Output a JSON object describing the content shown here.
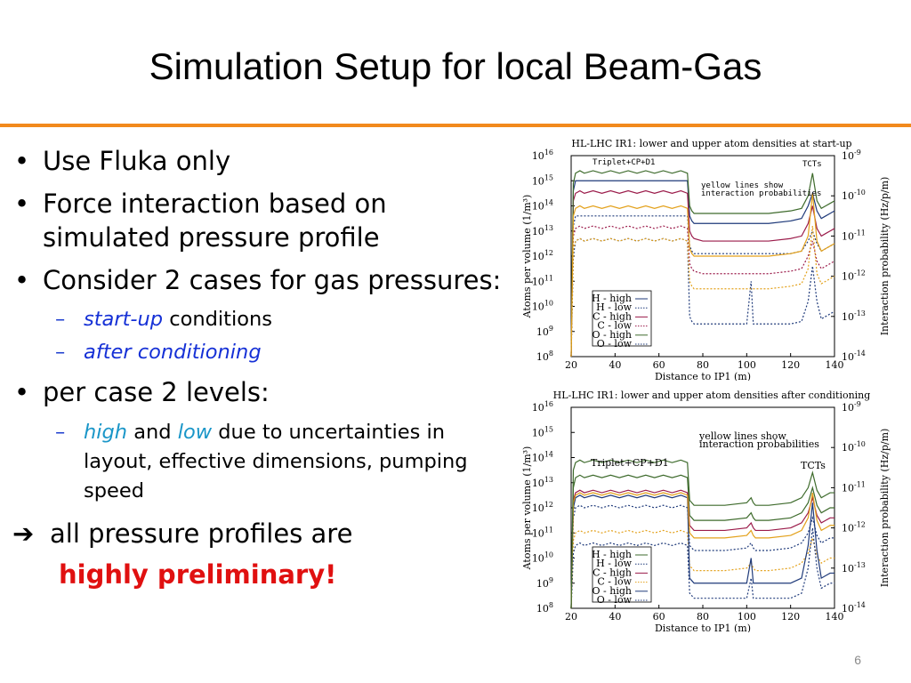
{
  "slide": {
    "title": "Simulation Setup for local Beam-Gas",
    "page_number": "6",
    "accent_color": "#f28a1d"
  },
  "bullets": {
    "b1": "Use Fluka only",
    "b2": "Force interaction based on simulated pressure profile",
    "b3": "Consider 2 cases for gas pressures:",
    "b3_sub1_em": "start-up",
    "b3_sub1_rest": " conditions",
    "b3_sub2_em": "after conditioning",
    "b4": "per case 2 levels:",
    "b4_sub1_em1": "high",
    "b4_sub1_and": " and ",
    "b4_sub1_em2": "low",
    "b4_sub1_rest": " due to uncertainties in layout, effective dimensions, pumping speed",
    "arrow_text": "all pressure profiles are",
    "prelim": "highly preliminary!"
  },
  "chart_data": [
    {
      "type": "line",
      "title": "HL-LHC IR1: lower and upper atom densities at start-up",
      "xlabel": "Distance to IP1 (m)",
      "ylabel": "Atoms per volume (1/m³)",
      "y2label": "Interaction probability (Hz/p/m)",
      "xlim": [
        20,
        140
      ],
      "ylim_log10": [
        8,
        16
      ],
      "y2lim_log10": [
        -14,
        -9
      ],
      "xticks": [
        "20",
        "40",
        "60",
        "80",
        "100",
        "120",
        "140"
      ],
      "yticks": [
        "10",
        "10",
        "10",
        "10",
        "10",
        "10",
        "10",
        "10",
        "10"
      ],
      "ytick_exp": [
        "8",
        "9",
        "10",
        "11",
        "12",
        "13",
        "14",
        "15",
        "16"
      ],
      "y2ticks_exp": [
        "-14",
        "-13",
        "-12",
        "-11",
        "-10",
        "-9"
      ],
      "annotations": [
        "Triplet+CP+D1",
        "TCTs",
        "yellow lines show",
        "interaction probabilities"
      ],
      "legend": [
        "H - high",
        "H - low",
        "C - high",
        "C - low",
        "O - high",
        "O - low"
      ],
      "x": [
        20,
        21,
        22,
        24,
        26,
        30,
        34,
        38,
        42,
        46,
        50,
        54,
        58,
        62,
        66,
        70,
        73,
        74,
        75,
        76,
        80,
        90,
        100,
        102,
        103,
        104,
        106,
        110,
        120,
        125,
        128,
        130,
        132,
        134,
        136,
        138,
        140
      ],
      "series": [
        {
          "name": "H - high",
          "color": "#1f3a7a",
          "values": [
            8.0,
            14.6,
            15.0,
            15.0,
            15.0,
            15.0,
            15.0,
            15.0,
            15.0,
            15.0,
            15.0,
            15.0,
            15.0,
            15.0,
            15.0,
            15.0,
            15.0,
            13.6,
            13.4,
            13.3,
            13.3,
            13.3,
            13.3,
            13.3,
            13.3,
            13.3,
            13.3,
            13.3,
            13.4,
            13.5,
            14.0,
            14.5,
            13.8,
            13.5,
            13.6,
            13.7,
            13.8
          ]
        },
        {
          "name": "H - low",
          "color": "#1f3a7a",
          "dashed": true,
          "values": [
            8.0,
            13.2,
            13.6,
            13.6,
            13.6,
            13.6,
            13.6,
            13.6,
            13.6,
            13.6,
            13.6,
            13.6,
            13.6,
            13.6,
            13.6,
            13.6,
            13.6,
            12.4,
            12.2,
            12.1,
            12.1,
            12.1,
            12.1,
            12.1,
            12.1,
            12.1,
            12.1,
            12.1,
            12.1,
            12.2,
            12.6,
            13.0,
            12.5,
            12.2,
            12.3,
            12.4,
            12.5
          ]
        },
        {
          "name": "C - high",
          "color": "#9b1b4a",
          "values": [
            8.0,
            14.2,
            14.5,
            14.6,
            14.5,
            14.6,
            14.5,
            14.6,
            14.5,
            14.6,
            14.5,
            14.6,
            14.5,
            14.6,
            14.5,
            14.6,
            14.5,
            13.0,
            12.8,
            12.7,
            12.6,
            12.6,
            12.6,
            12.6,
            12.6,
            12.6,
            12.6,
            12.6,
            12.7,
            12.8,
            13.3,
            14.0,
            13.1,
            12.8,
            12.9,
            13.0,
            13.1
          ]
        },
        {
          "name": "C - low",
          "color": "#9b1b4a",
          "dashed": true,
          "values": [
            8.0,
            12.8,
            13.1,
            13.2,
            13.1,
            13.2,
            13.1,
            13.2,
            13.1,
            13.2,
            13.1,
            13.2,
            13.1,
            13.2,
            13.1,
            13.2,
            13.1,
            11.7,
            11.5,
            11.4,
            11.3,
            11.3,
            11.3,
            11.3,
            11.3,
            11.3,
            11.3,
            11.3,
            11.4,
            11.5,
            12.0,
            12.6,
            11.8,
            11.5,
            11.6,
            11.7,
            11.8
          ]
        },
        {
          "name": "O - high",
          "color": "#3e6b2c",
          "values": [
            8.0,
            14.9,
            15.3,
            15.4,
            15.3,
            15.4,
            15.3,
            15.4,
            15.3,
            15.4,
            15.3,
            15.4,
            15.3,
            15.4,
            15.3,
            15.4,
            15.3,
            14.0,
            13.8,
            13.7,
            13.7,
            13.7,
            13.7,
            13.7,
            13.7,
            13.7,
            13.7,
            13.7,
            13.8,
            13.9,
            14.4,
            15.3,
            14.2,
            13.9,
            14.0,
            14.1,
            14.2
          ]
        },
        {
          "name": "O - low",
          "color": "#1f3a7a",
          "dashed": true,
          "values": [
            8.0,
            12.0,
            12.6,
            12.7,
            12.6,
            12.7,
            12.6,
            12.7,
            12.6,
            12.7,
            12.6,
            12.7,
            12.6,
            12.7,
            12.6,
            12.7,
            12.6,
            9.6,
            9.4,
            9.3,
            9.3,
            9.3,
            9.3,
            11.0,
            9.3,
            9.3,
            9.3,
            9.3,
            9.3,
            9.4,
            10.2,
            11.6,
            10.2,
            9.5,
            9.6,
            9.7,
            9.8
          ]
        },
        {
          "name": "",
          "color": "#e3a11b",
          "values": [
            8.0,
            13.6,
            13.9,
            14.0,
            13.9,
            14.0,
            13.9,
            14.0,
            13.9,
            14.0,
            13.9,
            14.0,
            13.9,
            14.0,
            13.9,
            14.0,
            13.9,
            12.3,
            12.1,
            12.0,
            12.0,
            12.0,
            12.0,
            12.0,
            12.0,
            12.0,
            12.0,
            12.0,
            12.1,
            12.2,
            12.8,
            14.5,
            12.6,
            12.2,
            12.3,
            12.4,
            12.5
          ]
        },
        {
          "name": "",
          "color": "#e3a11b",
          "dashed": true,
          "values": [
            8.0,
            12.3,
            12.6,
            12.7,
            12.6,
            12.7,
            12.6,
            12.7,
            12.6,
            12.7,
            12.6,
            12.7,
            12.6,
            12.7,
            12.6,
            12.7,
            12.6,
            11.0,
            10.8,
            10.7,
            10.7,
            10.7,
            10.7,
            10.7,
            10.7,
            10.7,
            10.7,
            10.7,
            10.8,
            10.9,
            11.5,
            13.2,
            11.3,
            10.9,
            11.0,
            11.1,
            11.2
          ]
        }
      ]
    },
    {
      "type": "line",
      "title": "HL-LHC IR1: lower and upper atom densities after conditioning",
      "xlabel": "Distance to IP1 (m)",
      "ylabel": "Atoms per volume (1/m³)",
      "y2label": "Interaction probability (Hz/p/m)",
      "xlim": [
        20,
        140
      ],
      "ylim_log10": [
        8,
        16
      ],
      "y2lim_log10": [
        -14,
        -9
      ],
      "xticks": [
        "20",
        "40",
        "60",
        "80",
        "100",
        "120",
        "140"
      ],
      "yticks": [
        "10",
        "10",
        "10",
        "10",
        "10",
        "10",
        "10",
        "10",
        "10"
      ],
      "ytick_exp": [
        "8",
        "9",
        "10",
        "11",
        "12",
        "13",
        "14",
        "15",
        "16"
      ],
      "y2ticks_exp": [
        "-14",
        "-13",
        "-12",
        "-11",
        "-10",
        "-9"
      ],
      "annotations": [
        "Triplet+CP+D1",
        "TCTs",
        "yellow lines show",
        "interaction probabilities"
      ],
      "legend": [
        "H - high",
        "H - low",
        "C - high",
        "C - low",
        "O - high",
        "O - low"
      ],
      "x": [
        20,
        21,
        22,
        24,
        26,
        30,
        34,
        38,
        42,
        46,
        50,
        54,
        58,
        62,
        66,
        70,
        73,
        74,
        75,
        76,
        80,
        90,
        100,
        102,
        103,
        104,
        106,
        110,
        120,
        125,
        128,
        130,
        132,
        134,
        136,
        138,
        140
      ],
      "series": [
        {
          "name": "H - high",
          "color": "#3e6b2c",
          "values": [
            8.0,
            12.8,
            13.2,
            13.3,
            13.2,
            13.3,
            13.2,
            13.3,
            13.2,
            13.3,
            13.2,
            13.3,
            13.2,
            13.3,
            13.2,
            13.3,
            13.2,
            11.7,
            11.6,
            11.5,
            11.5,
            11.5,
            11.6,
            11.8,
            11.6,
            11.5,
            11.5,
            11.5,
            11.6,
            11.8,
            12.2,
            12.8,
            12.1,
            11.8,
            11.9,
            12.0,
            12.0
          ]
        },
        {
          "name": "H - low",
          "color": "#1f3a7a",
          "dashed": true,
          "values": [
            8.0,
            11.6,
            12.0,
            12.1,
            12.0,
            12.1,
            12.0,
            12.1,
            12.0,
            12.1,
            12.0,
            12.1,
            12.0,
            12.1,
            12.0,
            12.1,
            12.0,
            10.5,
            10.4,
            10.3,
            10.3,
            10.3,
            10.4,
            10.6,
            10.4,
            10.3,
            10.3,
            10.3,
            10.4,
            10.6,
            11.0,
            11.6,
            10.9,
            10.6,
            10.7,
            10.8,
            10.8
          ]
        },
        {
          "name": "C - high",
          "color": "#9b1b4a",
          "values": [
            8.0,
            12.3,
            12.6,
            12.7,
            12.6,
            12.7,
            12.6,
            12.7,
            12.6,
            12.7,
            12.6,
            12.7,
            12.6,
            12.7,
            12.6,
            12.7,
            12.6,
            11.3,
            11.2,
            11.1,
            11.1,
            11.1,
            11.2,
            11.4,
            11.2,
            11.1,
            11.1,
            11.1,
            11.2,
            11.4,
            11.8,
            12.4,
            11.7,
            11.4,
            11.5,
            11.6,
            11.6
          ]
        },
        {
          "name": "C - low",
          "color": "#e3a11b",
          "dashed": true,
          "values": [
            8.0,
            10.7,
            11.0,
            11.1,
            11.0,
            11.1,
            11.0,
            11.1,
            11.0,
            11.1,
            11.0,
            11.1,
            11.0,
            11.1,
            11.0,
            11.1,
            11.0,
            9.7,
            9.6,
            9.5,
            9.5,
            9.5,
            9.6,
            9.8,
            9.6,
            9.5,
            9.5,
            9.5,
            9.6,
            9.8,
            10.2,
            10.8,
            10.1,
            9.8,
            9.9,
            10.0,
            10.0
          ]
        },
        {
          "name": "O - high",
          "color": "#1f3a7a",
          "values": [
            8.0,
            12.0,
            12.4,
            12.5,
            12.4,
            12.5,
            12.4,
            12.5,
            12.4,
            12.5,
            12.4,
            12.5,
            12.4,
            12.5,
            12.4,
            12.5,
            12.4,
            9.2,
            9.1,
            9.0,
            9.0,
            9.0,
            9.0,
            10.0,
            9.0,
            9.0,
            9.0,
            9.0,
            9.0,
            9.2,
            10.5,
            12.2,
            10.3,
            9.2,
            9.3,
            9.4,
            9.4
          ]
        },
        {
          "name": "O - low",
          "color": "#1f3a7a",
          "dashed": true,
          "values": [
            8.0,
            10.2,
            10.5,
            10.6,
            10.5,
            10.6,
            10.5,
            10.6,
            10.5,
            10.6,
            10.5,
            10.6,
            10.5,
            10.6,
            10.5,
            10.6,
            10.5,
            8.6,
            8.5,
            8.4,
            8.4,
            8.4,
            8.4,
            9.2,
            8.4,
            8.4,
            8.4,
            8.4,
            8.4,
            8.6,
            9.6,
            11.2,
            9.6,
            8.8,
            8.9,
            9.0,
            9.0
          ]
        },
        {
          "name": "",
          "color": "#e3a11b",
          "values": [
            8.0,
            12.2,
            12.5,
            12.6,
            12.5,
            12.6,
            12.5,
            12.6,
            12.5,
            12.6,
            12.5,
            12.6,
            12.5,
            12.6,
            12.5,
            12.6,
            12.5,
            11.0,
            10.9,
            10.8,
            10.8,
            10.8,
            10.9,
            11.1,
            10.9,
            10.8,
            10.8,
            10.8,
            10.9,
            11.1,
            11.6,
            12.6,
            11.5,
            11.1,
            11.2,
            11.3,
            11.3
          ]
        },
        {
          "name": "",
          "color": "#3e6b2c",
          "values": [
            8.0,
            13.5,
            13.8,
            13.9,
            13.8,
            13.9,
            13.8,
            13.9,
            13.8,
            13.9,
            13.8,
            13.9,
            13.8,
            13.9,
            13.8,
            13.9,
            13.8,
            12.3,
            12.2,
            12.1,
            12.1,
            12.1,
            12.2,
            12.4,
            12.2,
            12.1,
            12.1,
            12.1,
            12.2,
            12.4,
            12.8,
            13.4,
            12.7,
            12.4,
            12.5,
            12.6,
            12.6
          ]
        }
      ]
    }
  ]
}
